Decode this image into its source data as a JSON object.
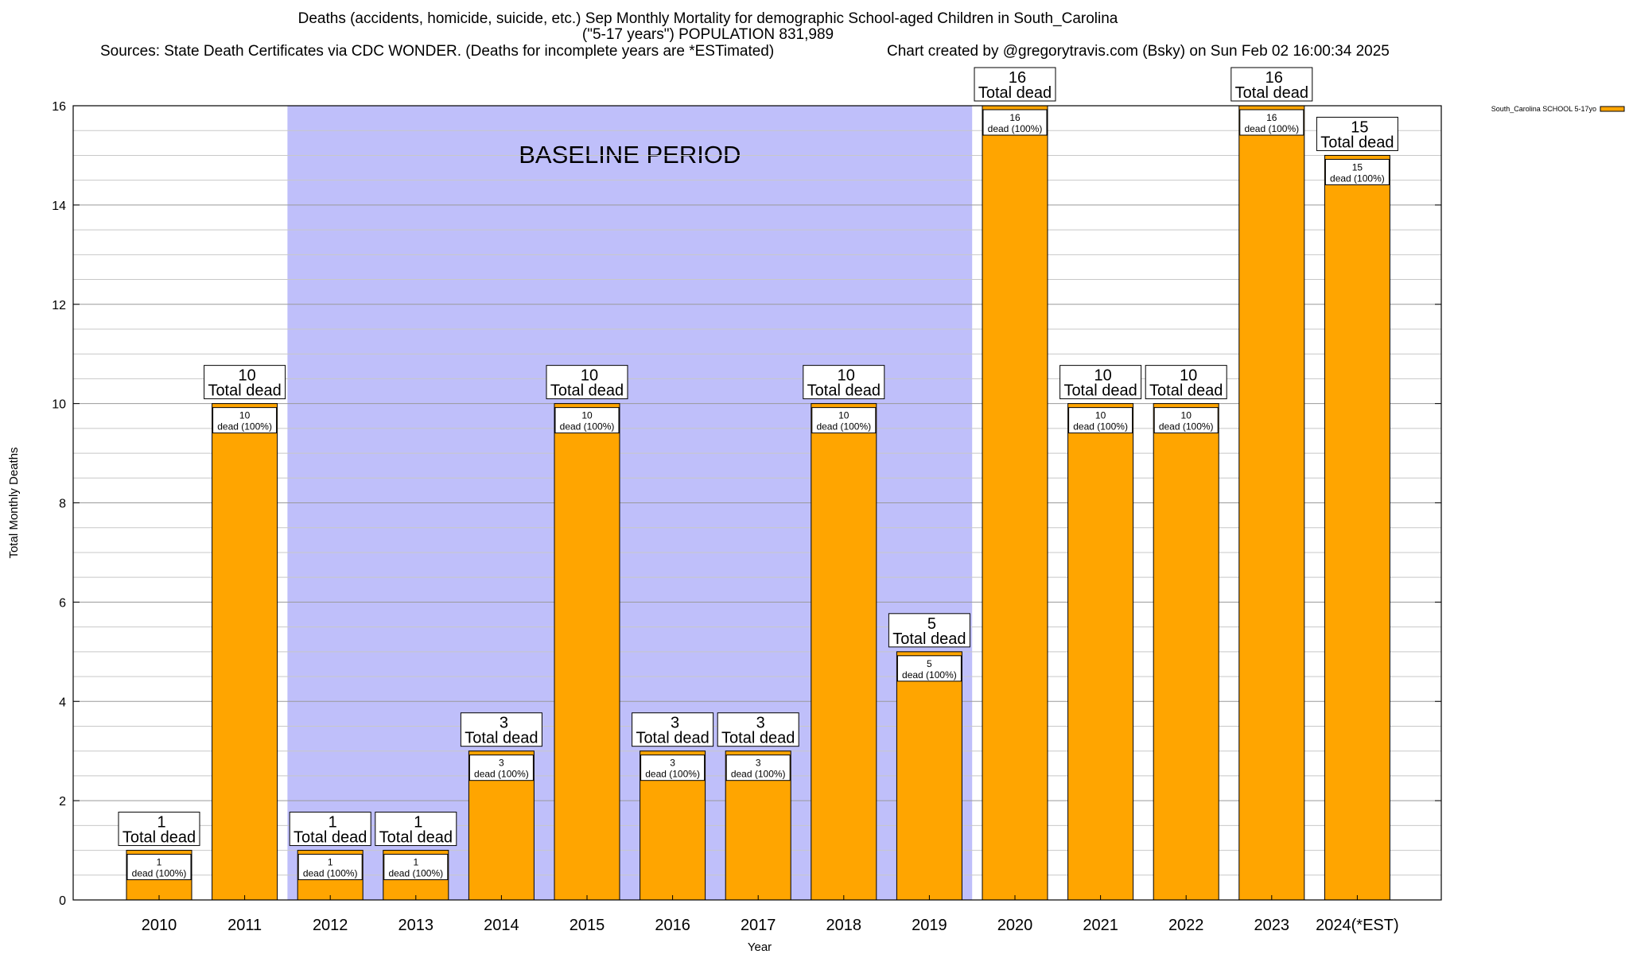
{
  "header": {
    "title_line1": "Deaths (accidents, homicide, suicide, etc.) Sep Monthly Mortality for demographic School-aged Children in South_Carolina",
    "title_line2": "(\"5-17 years\") POPULATION 831,989",
    "sources": "Sources: State Death Certificates via CDC WONDER. (Deaths for incomplete years are *ESTimated)",
    "credit": "Chart created by @gregorytravis.com (Bsky) on Sun Feb 02 16:00:34 2025"
  },
  "chart_data": {
    "type": "bar",
    "title": "Deaths (accidents, homicide, suicide, etc.) Sep Monthly Mortality for demographic School-aged Children in South_Carolina",
    "xlabel": "Year",
    "ylabel": "Total Monthly Deaths",
    "ylim": [
      0,
      16
    ],
    "yticks": [
      0,
      2,
      4,
      6,
      8,
      10,
      12,
      14,
      16
    ],
    "categories": [
      "2010",
      "2011",
      "2012",
      "2013",
      "2014",
      "2015",
      "2016",
      "2017",
      "2018",
      "2019",
      "2020",
      "2021",
      "2022",
      "2023",
      "2024(*EST)"
    ],
    "series": [
      {
        "name": "South_Carolina SCHOOL 5-17yo",
        "color": "#FFA500",
        "values": [
          1,
          10,
          1,
          1,
          3,
          10,
          3,
          3,
          10,
          5,
          16,
          10,
          10,
          16,
          15
        ]
      }
    ],
    "total_label_suffix": "Total dead",
    "inner_label_suffix": "dead (100%)",
    "baseline": {
      "label": "BASELINE PERIOD",
      "from": "2012",
      "to": "2019",
      "color": "#BFBFFA"
    },
    "grid": true,
    "legend_position": "top-right"
  }
}
